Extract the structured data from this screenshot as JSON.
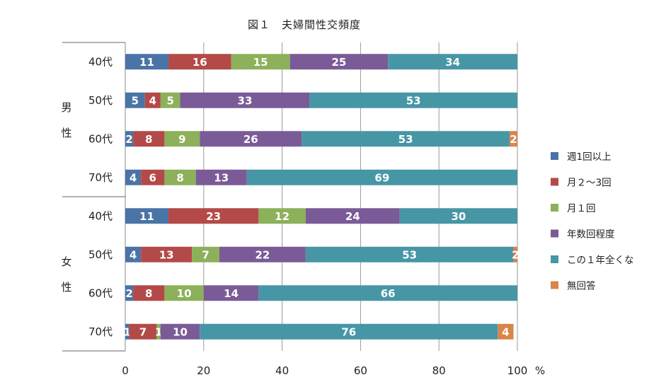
{
  "chart_data": {
    "type": "bar",
    "title": "図１　夫婦間性交頻度",
    "stacked": true,
    "orientation": "horizontal",
    "xlim": [
      0,
      100
    ],
    "x_ticks": [
      "0",
      "20",
      "40",
      "60",
      "80",
      "100"
    ],
    "x_unit": "%",
    "grid": true,
    "legend_position": "right",
    "groups": [
      {
        "label": "男性",
        "chars": [
          "男",
          "性"
        ],
        "categories": [
          "40代",
          "50代",
          "60代",
          "70代"
        ]
      },
      {
        "label": "女性",
        "chars": [
          "女",
          "性"
        ],
        "categories": [
          "40代",
          "50代",
          "60代",
          "70代"
        ]
      }
    ],
    "series": [
      {
        "name": "週1回以上",
        "color": "#4a73a6",
        "values": [
          11,
          5,
          2,
          4,
          11,
          4,
          2,
          1
        ]
      },
      {
        "name": "月２～3回",
        "color": "#b34a48",
        "values": [
          16,
          4,
          8,
          6,
          23,
          13,
          8,
          7
        ]
      },
      {
        "name": "月１回",
        "color": "#8db05a",
        "values": [
          15,
          5,
          9,
          8,
          12,
          7,
          10,
          1
        ]
      },
      {
        "name": "年数回程度",
        "color": "#7a5b97",
        "values": [
          25,
          33,
          26,
          13,
          24,
          22,
          14,
          10
        ]
      },
      {
        "name": "この１年全くな",
        "color": "#4796a6",
        "values": [
          34,
          53,
          53,
          69,
          30,
          53,
          66,
          76
        ]
      },
      {
        "name": "無回答",
        "color": "#d9844a",
        "values": [
          0,
          0,
          2,
          0,
          0,
          2,
          0,
          4
        ]
      }
    ]
  }
}
